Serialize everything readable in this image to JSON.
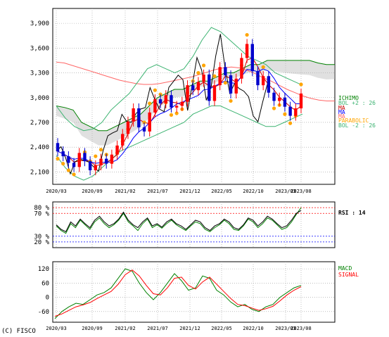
{
  "copyright": "(C) FISCO",
  "colors": {
    "candle_up": "#ff0000",
    "candle_down": "#0000cc",
    "ichimoku": "#008000",
    "cloud": "#bbbbbb",
    "bollinger": "#3cb371",
    "ma_short": "#cc0000",
    "ma_mid": "#0000ff",
    "ma_long": "#ff6666",
    "lagging": "#000000",
    "parabolic": "#ffa500",
    "rsi_a": "#000000",
    "rsi_b": "#008000",
    "macd": "#008000",
    "signal": "#ff0000",
    "rsi_high": "#ff0000",
    "rsi_low": "#0000ff"
  },
  "chart_data": [
    {
      "type": "candlestick",
      "x_ticks": [
        "2020/03",
        "2020/09",
        "2021/02",
        "2021/07",
        "2021/12",
        "2022/05",
        "2022/10",
        "2023/03",
        "2023/08"
      ],
      "y_ticks": [
        "3,900",
        "3,600",
        "3,300",
        "3,000",
        "2,700",
        "2,400",
        "2,100"
      ],
      "ylim": [
        1950,
        4080
      ],
      "grid": true,
      "legend": [
        {
          "label": "ICHIMO",
          "color": "#008000"
        },
        {
          "label": "BOL +2 : 26",
          "color": "#3cb371"
        },
        {
          "label": "MA",
          "color": "#cc0000"
        },
        {
          "label": "MA",
          "color": "#0000ff"
        },
        {
          "label": "MA",
          "color": "#ff6666"
        },
        {
          "label": "PARABOLIC",
          "color": "#ffa500"
        },
        {
          "label": "BOL -2 : 26",
          "color": "#3cb371"
        }
      ],
      "close": [
        2350,
        2290,
        2210,
        2160,
        2330,
        2230,
        2120,
        2180,
        2260,
        2200,
        2310,
        2420,
        2560,
        2710,
        2870,
        2640,
        2590,
        2820,
        2980,
        2930,
        3030,
        2880,
        2900,
        2950,
        3150,
        3090,
        3190,
        3280,
        2960,
        3150,
        3370,
        3270,
        3050,
        3230,
        3480,
        3650,
        3320,
        3150,
        3260,
        3060,
        2960,
        3000,
        2890,
        2780,
        2870,
        3050
      ],
      "open": [
        2450,
        2350,
        2290,
        2210,
        2160,
        2330,
        2230,
        2120,
        2180,
        2260,
        2200,
        2310,
        2420,
        2560,
        2710,
        2870,
        2640,
        2590,
        2820,
        2980,
        2930,
        3030,
        2880,
        2900,
        2950,
        3150,
        3090,
        3190,
        3280,
        2960,
        3150,
        3370,
        3270,
        3050,
        3230,
        3480,
        3650,
        3320,
        3150,
        3260,
        3060,
        2960,
        3000,
        2890,
        2780,
        2870
      ],
      "ichimoku_span": [
        2900,
        2880,
        2850,
        2700,
        2650,
        2600,
        2600,
        2650,
        2700,
        2750,
        2800,
        2900,
        3000,
        3050,
        3100,
        3100,
        3150,
        3200,
        3200,
        3250,
        3300,
        3300,
        3350,
        3400,
        3400,
        3450,
        3450,
        3450,
        3450,
        3450,
        3450,
        3420,
        3400,
        3400
      ],
      "ma_long": [
        3430,
        3420,
        3390,
        3360,
        3330,
        3300,
        3270,
        3240,
        3210,
        3190,
        3170,
        3160,
        3160,
        3170,
        3190,
        3210,
        3230,
        3250,
        3280,
        3310,
        3340,
        3360,
        3370,
        3360,
        3330,
        3290,
        3240,
        3200,
        3150,
        3100,
        3060,
        3020,
        2990,
        2970,
        2960,
        2960
      ],
      "bol_upper": [
        2900,
        2750,
        2650,
        2600,
        2620,
        2700,
        2850,
        2950,
        3050,
        3200,
        3350,
        3400,
        3350,
        3300,
        3350,
        3500,
        3700,
        3850,
        3800,
        3700,
        3600,
        3500,
        3450,
        3400,
        3300,
        3250,
        3200,
        3150
      ],
      "bol_lower": [
        2300,
        2150,
        2050,
        2000,
        2050,
        2150,
        2250,
        2350,
        2400,
        2450,
        2500,
        2550,
        2600,
        2650,
        2700,
        2800,
        2850,
        2900,
        2900,
        2850,
        2800,
        2750,
        2700,
        2650,
        2650,
        2700,
        2750,
        2800
      ]
    },
    {
      "type": "line",
      "name": "RSI : 14",
      "y_ticks_high": [
        "80 %",
        "70 %"
      ],
      "y_ticks_low": [
        "30 %",
        "20 %"
      ],
      "ylim": [
        10,
        90
      ],
      "series": [
        {
          "name": "RSI : 14",
          "values": [
            50,
            42,
            38,
            55,
            48,
            60,
            52,
            45,
            58,
            65,
            55,
            48,
            52,
            60,
            72,
            58,
            50,
            45,
            55,
            62,
            48,
            52,
            46,
            55,
            60,
            52,
            48,
            42,
            50,
            58,
            55,
            45,
            40,
            48,
            52,
            60,
            55,
            45,
            42,
            50,
            62,
            58,
            48,
            55,
            65,
            60,
            52,
            45,
            48,
            58,
            70,
            75
          ]
        },
        {
          "values": [
            48,
            40,
            35,
            52,
            45,
            58,
            50,
            42,
            55,
            62,
            52,
            45,
            50,
            58,
            70,
            55,
            48,
            40,
            52,
            60,
            45,
            50,
            44,
            52,
            58,
            50,
            45,
            40,
            48,
            55,
            52,
            42,
            38,
            45,
            50,
            58,
            52,
            42,
            40,
            48,
            60,
            55,
            45,
            52,
            62,
            58,
            50,
            42,
            45,
            55,
            68,
            80
          ]
        }
      ]
    },
    {
      "type": "line",
      "y_ticks": [
        "120",
        "60",
        "0",
        "-60"
      ],
      "ylim": [
        -105,
        150
      ],
      "series": [
        {
          "name": "MACD",
          "values": [
            -90,
            -60,
            -40,
            -25,
            -30,
            -10,
            10,
            20,
            40,
            80,
            120,
            110,
            60,
            20,
            -10,
            20,
            60,
            100,
            70,
            30,
            40,
            90,
            80,
            30,
            10,
            -20,
            -40,
            -30,
            -50,
            -60,
            -40,
            -30,
            0,
            20,
            40,
            50
          ]
        },
        {
          "name": "SIGNAL",
          "values": [
            -80,
            -70,
            -55,
            -40,
            -32,
            -22,
            -5,
            10,
            25,
            55,
            95,
            115,
            90,
            50,
            15,
            10,
            40,
            80,
            85,
            50,
            35,
            65,
            85,
            55,
            25,
            -5,
            -30,
            -35,
            -45,
            -55,
            -48,
            -38,
            -15,
            10,
            30,
            45
          ]
        }
      ]
    }
  ]
}
